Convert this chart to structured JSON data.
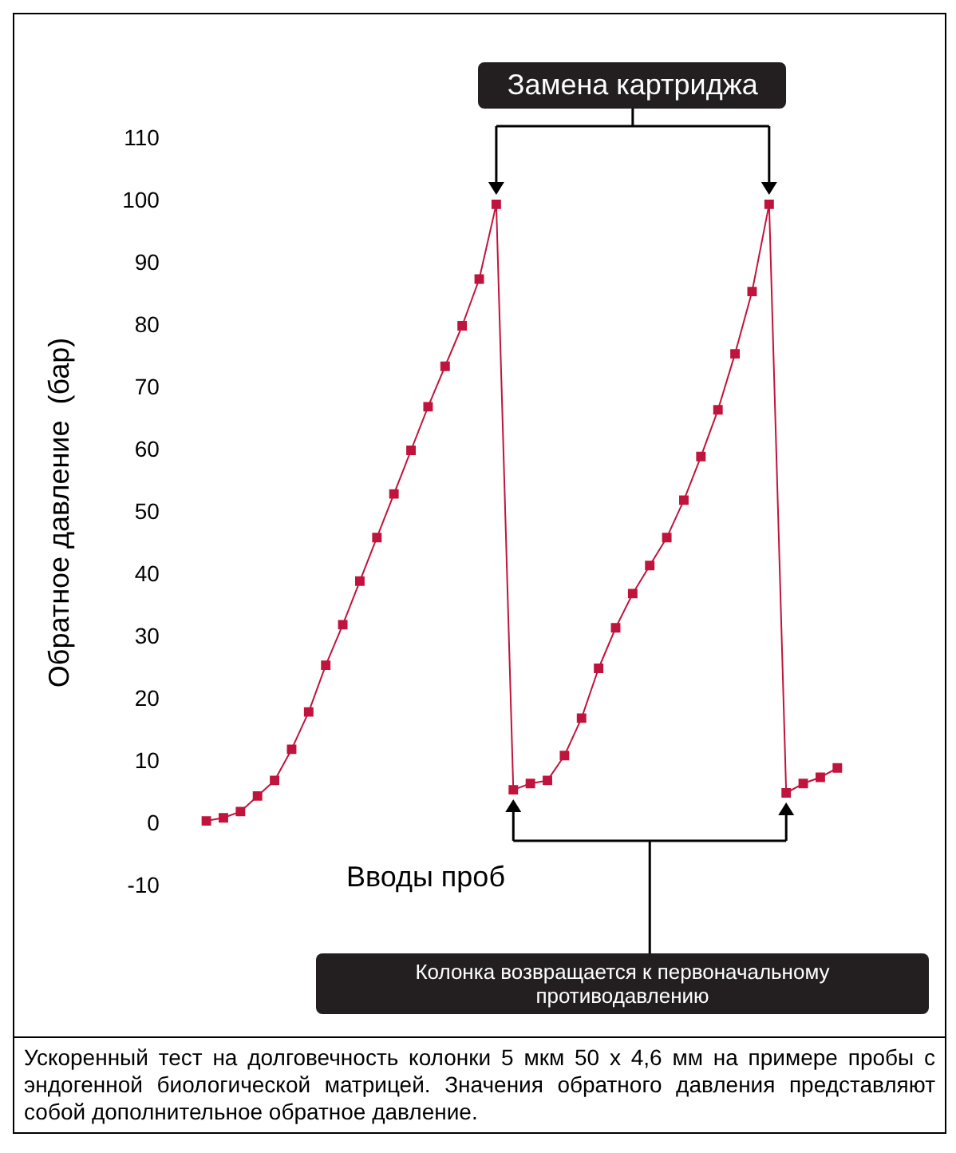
{
  "chart_data": {
    "type": "line",
    "ylabel": "Обратное давление  (бар)",
    "categories": [
      null,
      null,
      null,
      null,
      null,
      null,
      null,
      null,
      null,
      null,
      null,
      null,
      null,
      null,
      null,
      null,
      null,
      null,
      null,
      null,
      null,
      null,
      null,
      null,
      null,
      null,
      null,
      null,
      null,
      null,
      null,
      null,
      null,
      null,
      null,
      null,
      null,
      null
    ],
    "series": [
      {
        "color": "#c0143c",
        "values": [
          0.5,
          1,
          2,
          4.5,
          7,
          12,
          18,
          25.5,
          32,
          39,
          46,
          53,
          60,
          67,
          73.5,
          80,
          87.5,
          99.5,
          5.5,
          6.5,
          7,
          11,
          17,
          25,
          31.5,
          37,
          41.5,
          46,
          52,
          59,
          66.5,
          75.5,
          85.5,
          99.5,
          5,
          6.5,
          7.5,
          9
        ]
      }
    ],
    "ylim": [
      -10,
      110
    ],
    "yticks": [
      -10,
      0,
      10,
      20,
      30,
      40,
      50,
      60,
      70,
      80,
      90,
      100,
      110
    ],
    "tick_labels": "y",
    "marker": "square",
    "line_style": "solid",
    "annotations": [
      "Замена картриджа",
      "Вводы проб",
      "Колонка возвращается к первоначальному противодавлению",
      "Ускоренный  тест на долговечность  колонки 5 мкм 50 x 4,6 мм на примере пробы с эндогенной биологической матрицей. Значения обратного давления представляют собой дополнительное обратное давление."
    ]
  }
}
